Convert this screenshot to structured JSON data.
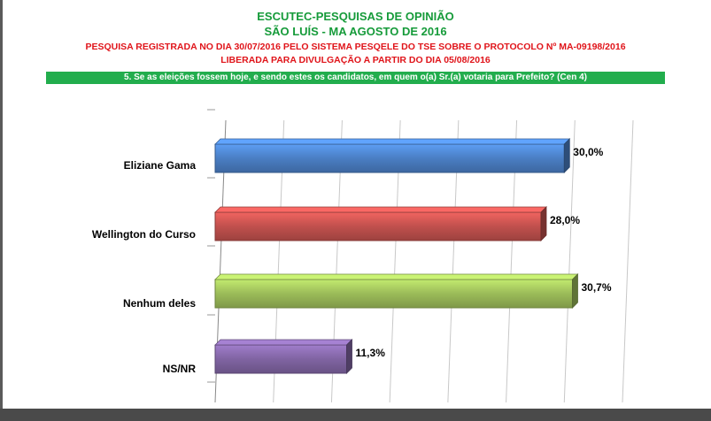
{
  "header": {
    "title_line1": "ESCUTEC-PESQUISAS DE OPINIÃO",
    "title_line2": "SÃO LUÍS - MA AGOSTO DE 2016",
    "registration_line1": "PESQUISA REGISTRADA NO DIA 30/07/2016 PELO SISTEMA PESQELE DO TSE SOBRE O PROTOCOLO Nº MA-09198/2016",
    "registration_line2": "LIBERADA PARA DIVULGAÇÃO A PARTIR DO DIA 05/08/2016",
    "question": "5. Se as eleições fossem hoje, e sendo estes os candidatos, em quem o(a) Sr.(a) votaria para Prefeito? (Cen 4)"
  },
  "colors": {
    "title": "#169b3a",
    "registration": "#e0141a",
    "question_bg": "#22ad4d"
  },
  "chart_data": {
    "type": "bar",
    "orientation": "horizontal",
    "categories": [
      "Eliziane Gama",
      "Wellington do Curso",
      "Nenhum deles",
      "NS/NR"
    ],
    "values": [
      30.0,
      28.0,
      30.7,
      11.3
    ],
    "value_labels": [
      "30,0%",
      "28,0%",
      "30,7%",
      "11,3%"
    ],
    "colors": [
      "#4a7ec3",
      "#c0504d",
      "#9bbb59",
      "#8064a2"
    ],
    "xlim": [
      0,
      35
    ],
    "grid": true,
    "legend": "none"
  }
}
